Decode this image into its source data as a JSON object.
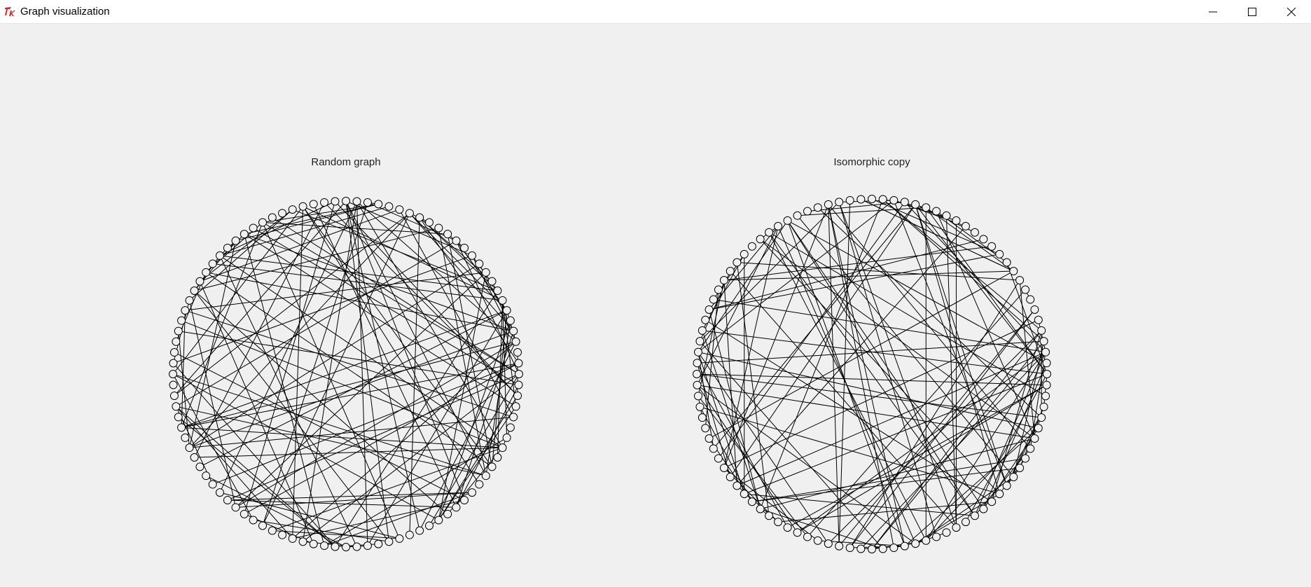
{
  "window": {
    "title": "Graph visualization",
    "app_icon": "tk-feather-icon",
    "controls": {
      "minimize_icon": "minimize-icon",
      "maximize_icon": "maximize-icon",
      "close_icon": "close-icon"
    }
  },
  "graphs": {
    "left": {
      "label": "Random graph",
      "node_count": 100,
      "edges": []
    },
    "right": {
      "label": "Isomorphic copy",
      "node_count": 100,
      "edges": []
    }
  },
  "colors": {
    "background": "#f0f0f0",
    "titlebar": "#ffffff",
    "stroke": "#000000"
  }
}
